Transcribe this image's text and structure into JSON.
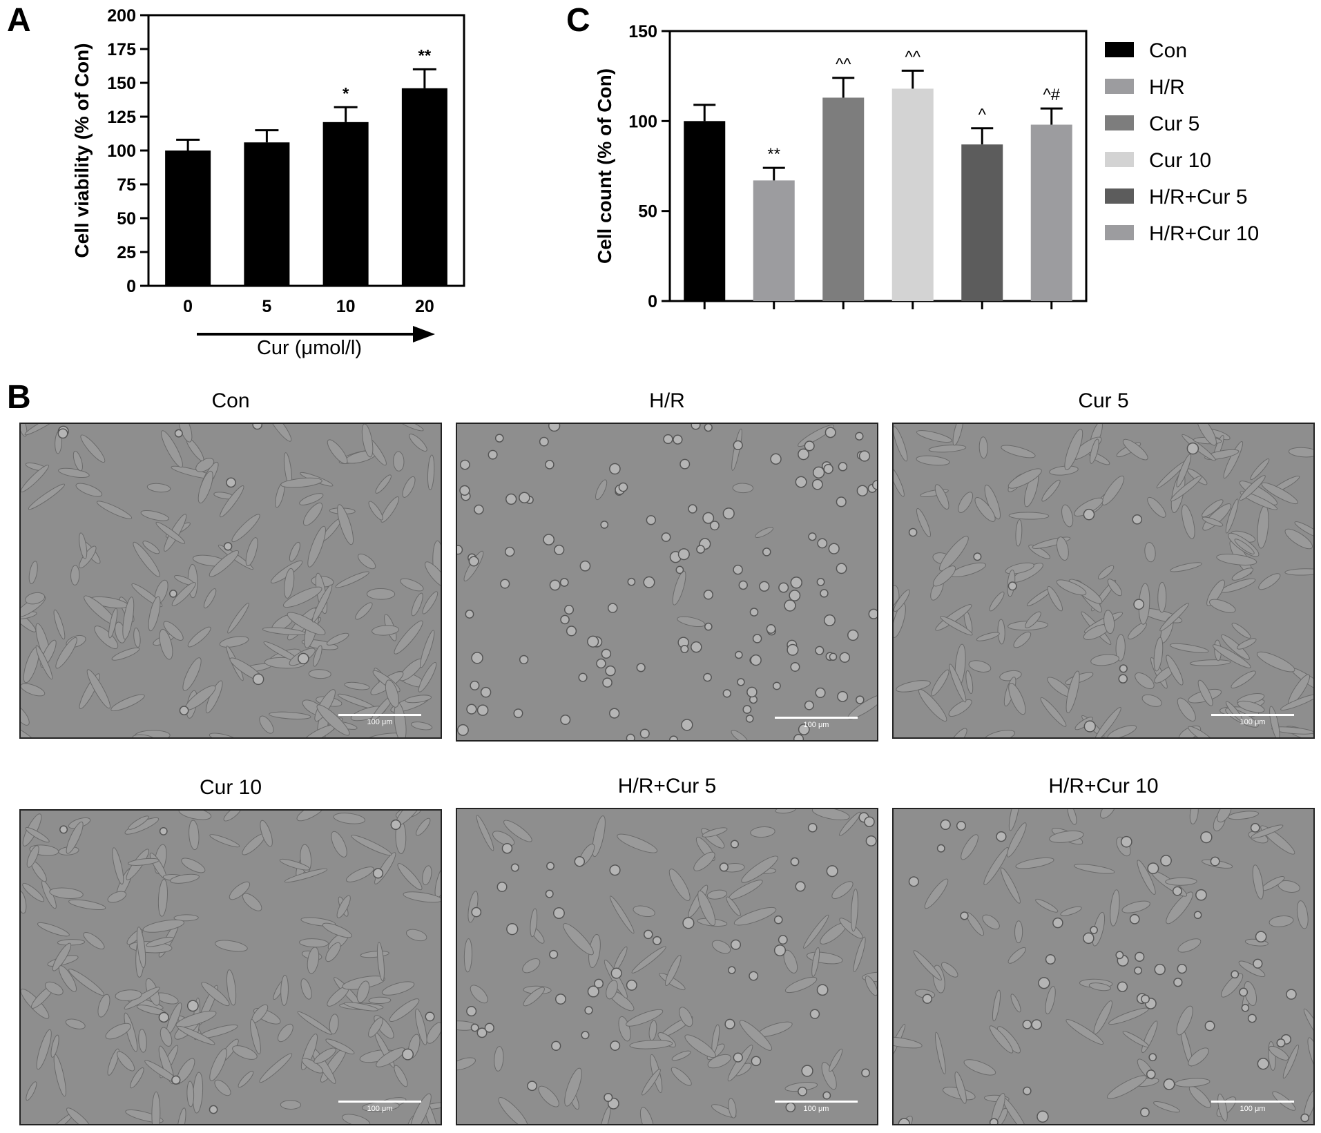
{
  "panels": {
    "a": "A",
    "b": "B",
    "c": "C"
  },
  "chart_data": [
    {
      "id": "A",
      "type": "bar",
      "categories": [
        "0",
        "5",
        "10",
        "20"
      ],
      "values": [
        100,
        106,
        121,
        146
      ],
      "errors": [
        8,
        9,
        11,
        14
      ],
      "annotations": [
        "",
        "",
        "*",
        "**"
      ],
      "ylabel": "Cell viability (% of Con)",
      "xlabel": "Cur (μmol/l)",
      "ylim": [
        0,
        200
      ],
      "yticks": [
        0,
        25,
        50,
        75,
        100,
        125,
        150,
        175,
        200
      ],
      "colors": [
        "#000000"
      ]
    },
    {
      "id": "C",
      "type": "bar",
      "categories": [
        "Con",
        "H/R",
        "Cur 5",
        "Cur 10",
        "H/R+Cur 5",
        "H/R+Cur 10"
      ],
      "values": [
        100,
        67,
        113,
        118,
        87,
        98
      ],
      "errors": [
        9,
        7,
        11,
        10,
        9,
        9
      ],
      "annotations": [
        "",
        "**",
        "^^",
        "^^",
        "^",
        "^#"
      ],
      "ylabel": "Cell count (% of Con)",
      "ylim": [
        0,
        150
      ],
      "yticks": [
        0,
        50,
        100,
        150
      ],
      "colors": [
        "#000000",
        "#9c9c9f",
        "#7d7d7d",
        "#d3d3d3",
        "#5c5c5c",
        "#9c9c9f"
      ],
      "legend": [
        "Con",
        "H/R",
        "Cur 5",
        "Cur 10",
        "H/R+Cur 5",
        "H/R+Cur 10"
      ],
      "legend_position": "right"
    }
  ],
  "micrographs": [
    {
      "title": "Con",
      "scale": "100 μm",
      "state": "spindle"
    },
    {
      "title": "H/R",
      "scale": "100 μm",
      "state": "round"
    },
    {
      "title": "Cur 5",
      "scale": "100 μm",
      "state": "spindle"
    },
    {
      "title": "Cur 10",
      "scale": "100 μm",
      "state": "spindle"
    },
    {
      "title": "H/R+Cur 5",
      "scale": "100 μm",
      "state": "mixed"
    },
    {
      "title": "H/R+Cur 10",
      "scale": "100 μm",
      "state": "mixed"
    }
  ]
}
